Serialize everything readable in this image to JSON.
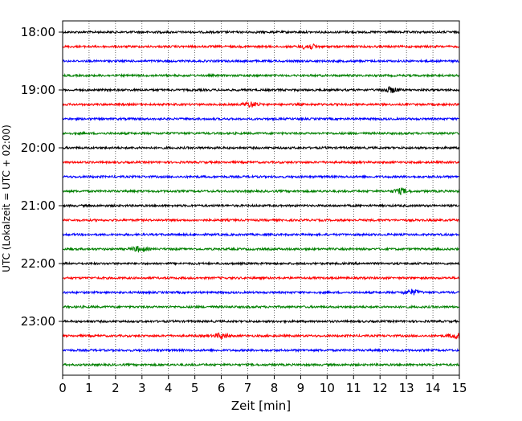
{
  "chart_data": {
    "type": "line",
    "title": "",
    "xlabel": "Zeit  [min]",
    "ylabel": "UTC (Lokalzeit = UTC + 02:00)",
    "xlim": [
      0,
      15
    ],
    "x_ticks": [
      "0",
      "1",
      "2",
      "3",
      "4",
      "5",
      "6",
      "7",
      "8",
      "9",
      "10",
      "11",
      "12",
      "13",
      "14",
      "15"
    ],
    "y_ticks": [
      "18:00",
      "19:00",
      "20:00",
      "21:00",
      "22:00",
      "23:00"
    ],
    "grid": "vertical dotted lines at each minute",
    "trace_interval_minutes": 15,
    "traces": [
      {
        "start": "18:00",
        "color": "#000000"
      },
      {
        "start": "18:15",
        "color": "#ff0000"
      },
      {
        "start": "18:30",
        "color": "#0000ff"
      },
      {
        "start": "18:45",
        "color": "#008000"
      },
      {
        "start": "19:00",
        "color": "#000000"
      },
      {
        "start": "19:15",
        "color": "#ff0000"
      },
      {
        "start": "19:30",
        "color": "#0000ff"
      },
      {
        "start": "19:45",
        "color": "#008000"
      },
      {
        "start": "20:00",
        "color": "#000000"
      },
      {
        "start": "20:15",
        "color": "#ff0000"
      },
      {
        "start": "20:30",
        "color": "#0000ff"
      },
      {
        "start": "20:45",
        "color": "#008000"
      },
      {
        "start": "21:00",
        "color": "#000000"
      },
      {
        "start": "21:15",
        "color": "#ff0000"
      },
      {
        "start": "21:30",
        "color": "#0000ff"
      },
      {
        "start": "21:45",
        "color": "#008000"
      },
      {
        "start": "22:00",
        "color": "#000000"
      },
      {
        "start": "22:15",
        "color": "#ff0000"
      },
      {
        "start": "22:30",
        "color": "#0000ff"
      },
      {
        "start": "22:45",
        "color": "#008000"
      },
      {
        "start": "23:00",
        "color": "#000000"
      },
      {
        "start": "23:15",
        "color": "#ff0000"
      },
      {
        "start": "23:30",
        "color": "#0000ff"
      },
      {
        "start": "23:45",
        "color": "#008000"
      }
    ],
    "events": [
      {
        "trace_start": "18:15",
        "minute": 9.3
      },
      {
        "trace_start": "19:00",
        "minute": 12.4
      },
      {
        "trace_start": "19:15",
        "minute": 7.1
      },
      {
        "trace_start": "20:45",
        "minute": 12.8
      },
      {
        "trace_start": "21:45",
        "minute": 2.9
      },
      {
        "trace_start": "22:30",
        "minute": 13.2
      },
      {
        "trace_start": "23:15",
        "minute": 6.0
      },
      {
        "trace_start": "23:15",
        "minute": 14.9
      }
    ]
  }
}
